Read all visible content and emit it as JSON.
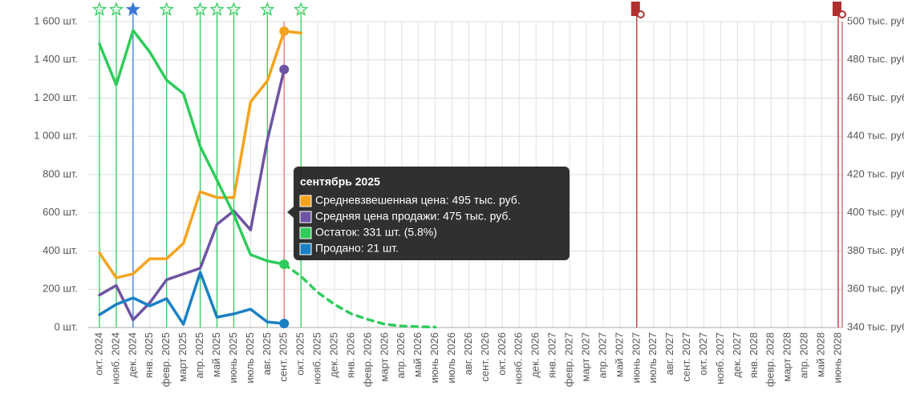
{
  "chart_data": {
    "type": "line",
    "categories": [
      "окт. 2024",
      "нояб. 2024",
      "дек. 2024",
      "янв. 2025",
      "февр. 2025",
      "март 2025",
      "апр. 2025",
      "май 2025",
      "июнь 2025",
      "июль 2025",
      "авг. 2025",
      "сент. 2025",
      "окт. 2025",
      "нояб. 2025",
      "дек. 2025",
      "янв. 2026",
      "февр. 2026",
      "март 2026",
      "апр. 2026",
      "май 2026",
      "июнь 2026",
      "июль 2026",
      "авг. 2026",
      "сент. 2026",
      "окт. 2026",
      "нояб. 2026",
      "дек. 2026",
      "янв. 2027",
      "февр. 2027",
      "март 2027",
      "апр. 2027",
      "май 2027",
      "июнь 2027",
      "июль 2027",
      "авг. 2027",
      "сент. 2027",
      "окт. 2027",
      "нояб. 2027",
      "дек. 2027",
      "янв. 2028",
      "февр. 2028",
      "март 2028",
      "апр. 2028",
      "май 2028",
      "июнь 2028"
    ],
    "ylim": [
      0,
      1600
    ],
    "yticks": [
      {
        "value": 0,
        "label": "0 шт."
      },
      {
        "value": 200,
        "label": "200 шт."
      },
      {
        "value": 400,
        "label": "400 шт."
      },
      {
        "value": 600,
        "label": "600 шт."
      },
      {
        "value": 800,
        "label": "800 шт."
      },
      {
        "value": 1000,
        "label": "1 000 шт."
      },
      {
        "value": 1200,
        "label": "1 200 шт."
      },
      {
        "value": 1400,
        "label": "1 400 шт."
      },
      {
        "value": 1600,
        "label": "1 600 шт."
      }
    ],
    "y2lim": [
      340,
      500
    ],
    "y2ticks": [
      {
        "value": 340,
        "label": "340 тыс. руб."
      },
      {
        "value": 360,
        "label": "360 тыс. руб."
      },
      {
        "value": 380,
        "label": "380 тыс. руб."
      },
      {
        "value": 400,
        "label": "400 тыс. руб."
      },
      {
        "value": 420,
        "label": "420 тыс. руб."
      },
      {
        "value": 440,
        "label": "440 тыс. руб."
      },
      {
        "value": 460,
        "label": "460 тыс. руб."
      },
      {
        "value": 480,
        "label": "480 тыс. руб."
      },
      {
        "value": 500,
        "label": "500 тыс. руб."
      }
    ],
    "grid": true,
    "series": [
      {
        "name": "Средневзвешенная цена",
        "color": "#f5a31e",
        "axis": "y2",
        "values": [
          379,
          366,
          368,
          376,
          376,
          384,
          411,
          408,
          408,
          458,
          469,
          495,
          494,
          null,
          null,
          null,
          null,
          null,
          null,
          null,
          null,
          null,
          null,
          null,
          null,
          null,
          null,
          null,
          null,
          null,
          null,
          null,
          null,
          null,
          null,
          null,
          null,
          null,
          null,
          null,
          null,
          null,
          null,
          null,
          null
        ]
      },
      {
        "name": "Средняя цена продажи",
        "color": "#6e54a3",
        "axis": "y2",
        "values": [
          357,
          362,
          344,
          353,
          365,
          368,
          371,
          394,
          401,
          391,
          438,
          475,
          null,
          null,
          null,
          null,
          null,
          null,
          null,
          null,
          null,
          null,
          null,
          null,
          null,
          null,
          null,
          null,
          null,
          null,
          null,
          null,
          null,
          null,
          null,
          null,
          null,
          null,
          null,
          null,
          null,
          null,
          null,
          null,
          null
        ]
      },
      {
        "name": "Остаток",
        "color": "#2fcc5c",
        "values": [
          1483,
          1269,
          1554,
          1441,
          1294,
          1223,
          947,
          771,
          591,
          381,
          348,
          331,
          null,
          null,
          null,
          null,
          null,
          null,
          null,
          null,
          null,
          null,
          null,
          null,
          null,
          null,
          null,
          null,
          null,
          null,
          null,
          null,
          null,
          null,
          null,
          null,
          null,
          null,
          null,
          null,
          null,
          null,
          null,
          null,
          null
        ]
      },
      {
        "name": "Продано",
        "color": "#1a80c4",
        "values": [
          67,
          121,
          155,
          113,
          151,
          17,
          289,
          54,
          71,
          96,
          29,
          21,
          null,
          null,
          null,
          null,
          null,
          null,
          null,
          null,
          null,
          null,
          null,
          null,
          null,
          null,
          null,
          null,
          null,
          null,
          null,
          null,
          null,
          null,
          null,
          null,
          null,
          null,
          null,
          null,
          null,
          null,
          null,
          null,
          null
        ]
      },
      {
        "color": "#2fcc5c",
        "dashed": true,
        "values": [
          null,
          null,
          null,
          null,
          null,
          null,
          null,
          null,
          null,
          null,
          null,
          331,
          268,
          184,
          121,
          71,
          42,
          17,
          8,
          4,
          2,
          null,
          null,
          null,
          null,
          null,
          null,
          null,
          null,
          null,
          null,
          null,
          null,
          null,
          null,
          null,
          null,
          null,
          null,
          null,
          null,
          null,
          null,
          null,
          null
        ]
      }
    ],
    "markers": [
      {
        "at": 0,
        "color": "#2fcc5c",
        "icon": "star"
      },
      {
        "at": 1,
        "color": "#2fcc5c",
        "icon": "star"
      },
      {
        "at": 2,
        "color": "#3a78d8",
        "icon": "star-filled"
      },
      {
        "at": 4,
        "color": "#2fcc5c",
        "icon": "star"
      },
      {
        "at": 6,
        "color": "#2fcc5c",
        "icon": "star"
      },
      {
        "at": 7,
        "color": "#2fcc5c",
        "icon": "star"
      },
      {
        "at": 8,
        "color": "#2fcc5c",
        "icon": "star"
      },
      {
        "at": 10,
        "color": "#2fcc5c",
        "icon": "star"
      },
      {
        "at": 12,
        "color": "#2fcc5c",
        "icon": "star"
      },
      {
        "at": 32,
        "color": "#b03030",
        "icon": "building"
      },
      {
        "at": 44,
        "color": "#b03030",
        "icon": "building"
      }
    ],
    "cursor": {
      "at": 11,
      "color": "#f07070"
    },
    "tooltip": {
      "title": "сентябрь 2025",
      "items": [
        {
          "color": "#f5a31e",
          "text": "Средневзвешенная цена: 495 тыс. руб."
        },
        {
          "color": "#6e54a3",
          "text": "Средняя цена продажи: 475 тыс. руб."
        },
        {
          "color": "#2fcc5c",
          "text": "Остаток: 331 шт. (5.8%)"
        },
        {
          "color": "#1a80c4",
          "text": "Продано: 21 шт."
        }
      ]
    }
  }
}
